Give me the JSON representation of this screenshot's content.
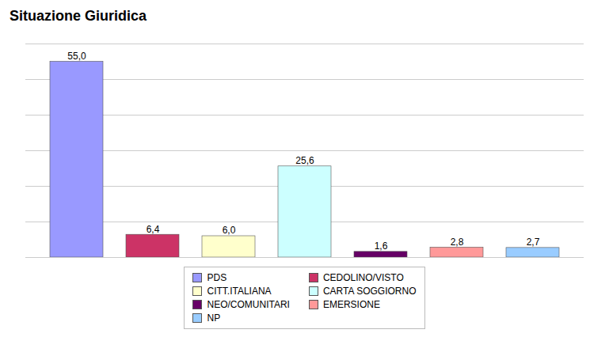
{
  "chart_data": {
    "type": "bar",
    "title": "Situazione Giuridica",
    "categories": [
      "PDS",
      "CEDOLINO/VISTO",
      "CITT.ITALIANA",
      "CARTA SOGGIORNO",
      "NEO/COMUNITARI",
      "EMERSIONE",
      "NP"
    ],
    "values": [
      55.0,
      6.4,
      6.0,
      25.6,
      1.6,
      2.8,
      2.7
    ],
    "value_labels": [
      "55,0",
      "6,4",
      "6,0",
      "25,6",
      "1,6",
      "2,8",
      "2,7"
    ],
    "colors": [
      "#9999FF",
      "#CC3366",
      "#FFFFCC",
      "#CCFFFF",
      "#660066",
      "#FF9999",
      "#99CCFF"
    ],
    "ylim": [
      0,
      60
    ],
    "yticks": [
      0,
      10,
      20,
      30,
      40,
      50,
      60
    ],
    "grid": true,
    "data_labels": true,
    "tick_labels": false,
    "legend": "bottom"
  }
}
